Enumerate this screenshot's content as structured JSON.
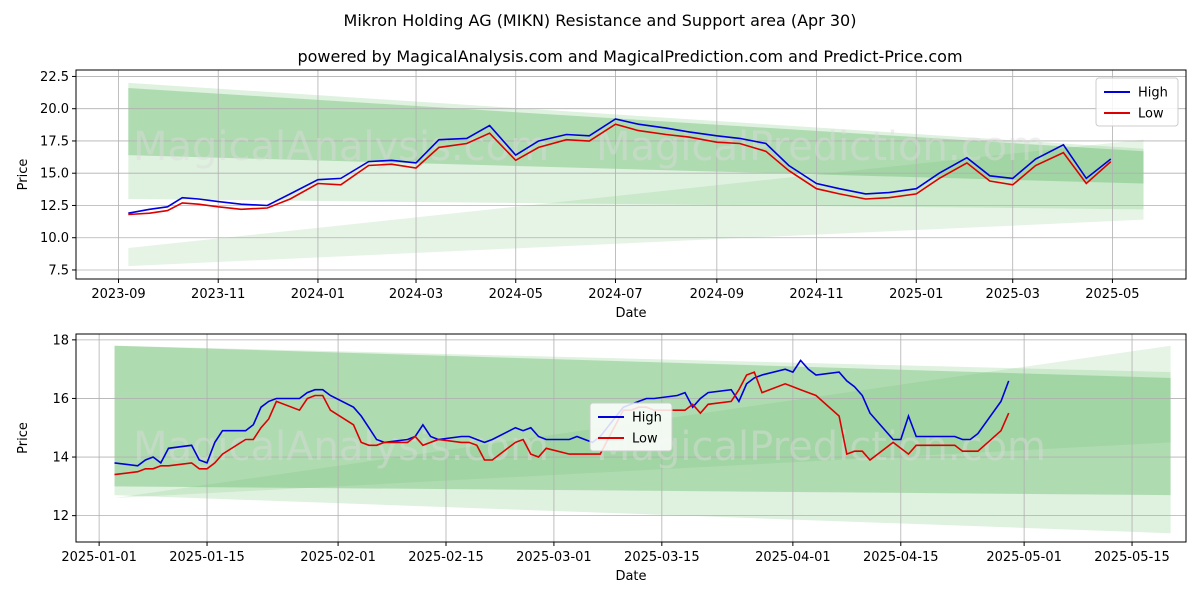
{
  "title": "Mikron Holding AG (MIKN) Resistance and Support area (Apr 30)",
  "subtitle": "powered by MagicalAnalysis.com and MagicalPrediction.com and Predict-Price.com",
  "watermarks": [
    "MagicalAnalysis.com",
    "MagicalPrediction.com"
  ],
  "colors": {
    "high": "#0000dd",
    "low": "#dd0000",
    "band": "#4caf50"
  },
  "chart_data": [
    {
      "type": "line",
      "xlabel": "Date",
      "ylabel": "Price",
      "xlim": [
        "2023-08-06",
        "2025-06-15"
      ],
      "ylim": [
        6.8,
        23.0
      ],
      "xticks": [
        "2023-09",
        "2023-11",
        "2024-01",
        "2024-03",
        "2024-05",
        "2024-07",
        "2024-09",
        "2024-11",
        "2025-01",
        "2025-03",
        "2025-05"
      ],
      "yticks": [
        7.5,
        10.0,
        12.5,
        15.0,
        17.5,
        20.0,
        22.5
      ],
      "legend": "top-right",
      "bands": [
        {
          "x": [
            "2023-09-07",
            "2025-05-20"
          ],
          "upper": [
            22.0,
            16.9
          ],
          "lower": [
            13.0,
            12.2
          ],
          "alpha": 0.18
        },
        {
          "x": [
            "2023-09-07",
            "2025-05-20"
          ],
          "upper": [
            21.6,
            16.7
          ],
          "lower": [
            16.4,
            14.2
          ],
          "alpha": 0.32
        },
        {
          "x": [
            "2023-09-07",
            "2025-05-20"
          ],
          "upper": [
            9.2,
            17.6
          ],
          "lower": [
            7.8,
            11.4
          ],
          "alpha": 0.14
        }
      ],
      "series": [
        {
          "name": "High",
          "x": [
            "2023-09-07",
            "2023-09-20",
            "2023-10-01",
            "2023-10-10",
            "2023-10-20",
            "2023-11-01",
            "2023-11-15",
            "2023-12-01",
            "2023-12-15",
            "2024-01-01",
            "2024-01-15",
            "2024-02-01",
            "2024-02-15",
            "2024-03-01",
            "2024-03-15",
            "2024-04-01",
            "2024-04-15",
            "2024-05-01",
            "2024-05-15",
            "2024-06-01",
            "2024-06-15",
            "2024-07-01",
            "2024-07-15",
            "2024-08-01",
            "2024-08-15",
            "2024-09-01",
            "2024-09-15",
            "2024-10-01",
            "2024-10-15",
            "2024-11-01",
            "2024-11-15",
            "2024-12-01",
            "2024-12-15",
            "2025-01-01",
            "2025-01-15",
            "2025-02-01",
            "2025-02-15",
            "2025-03-01",
            "2025-03-15",
            "2025-04-01",
            "2025-04-15",
            "2025-04-30"
          ],
          "values": [
            11.9,
            12.2,
            12.4,
            13.1,
            13.0,
            12.8,
            12.6,
            12.5,
            13.4,
            14.5,
            14.6,
            15.9,
            16.0,
            15.8,
            17.6,
            17.7,
            18.7,
            16.4,
            17.5,
            18.0,
            17.9,
            19.2,
            18.8,
            18.5,
            18.2,
            17.9,
            17.7,
            17.3,
            15.6,
            14.2,
            13.8,
            13.4,
            13.5,
            13.8,
            15.0,
            16.2,
            14.8,
            14.6,
            16.1,
            17.2,
            14.6,
            16.1
          ]
        },
        {
          "name": "Low",
          "x": [
            "2023-09-07",
            "2023-09-20",
            "2023-10-01",
            "2023-10-10",
            "2023-10-20",
            "2023-11-01",
            "2023-11-15",
            "2023-12-01",
            "2023-12-15",
            "2024-01-01",
            "2024-01-15",
            "2024-02-01",
            "2024-02-15",
            "2024-03-01",
            "2024-03-15",
            "2024-04-01",
            "2024-04-15",
            "2024-05-01",
            "2024-05-15",
            "2024-06-01",
            "2024-06-15",
            "2024-07-01",
            "2024-07-15",
            "2024-08-01",
            "2024-08-15",
            "2024-09-01",
            "2024-09-15",
            "2024-10-01",
            "2024-10-15",
            "2024-11-01",
            "2024-11-15",
            "2024-12-01",
            "2024-12-15",
            "2025-01-01",
            "2025-01-15",
            "2025-02-01",
            "2025-02-15",
            "2025-03-01",
            "2025-03-15",
            "2025-04-01",
            "2025-04-15",
            "2025-04-30"
          ],
          "values": [
            11.8,
            11.9,
            12.1,
            12.7,
            12.6,
            12.4,
            12.2,
            12.3,
            13.0,
            14.2,
            14.1,
            15.6,
            15.7,
            15.4,
            17.0,
            17.3,
            18.1,
            16.0,
            17.0,
            17.6,
            17.5,
            18.8,
            18.3,
            18.0,
            17.8,
            17.4,
            17.3,
            16.7,
            15.2,
            13.8,
            13.4,
            13.0,
            13.1,
            13.4,
            14.6,
            15.8,
            14.4,
            14.1,
            15.6,
            16.6,
            14.2,
            15.9
          ]
        }
      ]
    },
    {
      "type": "line",
      "xlabel": "Date",
      "ylabel": "Price",
      "xlim": [
        "2024-12-29",
        "2025-05-22"
      ],
      "ylim": [
        11.1,
        18.2
      ],
      "xticks": [
        "2025-01-01",
        "2025-01-15",
        "2025-02-01",
        "2025-02-15",
        "2025-03-01",
        "2025-03-15",
        "2025-04-01",
        "2025-04-15",
        "2025-05-01",
        "2025-05-15"
      ],
      "yticks": [
        12,
        14,
        16,
        18
      ],
      "legend": "center",
      "bands": [
        {
          "x": [
            "2025-01-03",
            "2025-05-20"
          ],
          "upper": [
            17.8,
            16.9
          ],
          "lower": [
            12.7,
            11.4
          ],
          "alpha": 0.18
        },
        {
          "x": [
            "2025-01-03",
            "2025-05-20"
          ],
          "upper": [
            17.8,
            16.7
          ],
          "lower": [
            13.0,
            12.7
          ],
          "alpha": 0.32
        },
        {
          "x": [
            "2025-01-03",
            "2025-05-20"
          ],
          "upper": [
            12.6,
            17.8
          ],
          "lower": [
            12.6,
            14.5
          ],
          "alpha": 0.14
        }
      ],
      "series": [
        {
          "name": "High",
          "x": [
            "2025-01-03",
            "2025-01-06",
            "2025-01-07",
            "2025-01-08",
            "2025-01-09",
            "2025-01-10",
            "2025-01-13",
            "2025-01-14",
            "2025-01-15",
            "2025-01-16",
            "2025-01-17",
            "2025-01-20",
            "2025-01-21",
            "2025-01-22",
            "2025-01-23",
            "2025-01-24",
            "2025-01-27",
            "2025-01-28",
            "2025-01-29",
            "2025-01-30",
            "2025-01-31",
            "2025-02-03",
            "2025-02-04",
            "2025-02-05",
            "2025-02-06",
            "2025-02-07",
            "2025-02-10",
            "2025-02-11",
            "2025-02-12",
            "2025-02-13",
            "2025-02-14",
            "2025-02-17",
            "2025-02-18",
            "2025-02-19",
            "2025-02-20",
            "2025-02-21",
            "2025-02-24",
            "2025-02-25",
            "2025-02-26",
            "2025-02-27",
            "2025-02-28",
            "2025-03-03",
            "2025-03-04",
            "2025-03-05",
            "2025-03-06",
            "2025-03-07",
            "2025-03-10",
            "2025-03-11",
            "2025-03-12",
            "2025-03-13",
            "2025-03-14",
            "2025-03-17",
            "2025-03-18",
            "2025-03-19",
            "2025-03-20",
            "2025-03-21",
            "2025-03-24",
            "2025-03-25",
            "2025-03-26",
            "2025-03-27",
            "2025-03-28",
            "2025-03-31",
            "2025-04-01",
            "2025-04-02",
            "2025-04-03",
            "2025-04-04",
            "2025-04-07",
            "2025-04-08",
            "2025-04-09",
            "2025-04-10",
            "2025-04-11",
            "2025-04-14",
            "2025-04-15",
            "2025-04-16",
            "2025-04-17",
            "2025-04-22",
            "2025-04-23",
            "2025-04-24",
            "2025-04-25",
            "2025-04-28",
            "2025-04-29"
          ],
          "values": [
            13.8,
            13.7,
            13.9,
            14.0,
            13.8,
            14.3,
            14.4,
            13.9,
            13.8,
            14.5,
            14.9,
            14.9,
            15.1,
            15.7,
            15.9,
            16.0,
            16.0,
            16.2,
            16.3,
            16.3,
            16.1,
            15.7,
            15.4,
            15.0,
            14.6,
            14.5,
            14.6,
            14.7,
            15.1,
            14.7,
            14.6,
            14.7,
            14.7,
            14.6,
            14.5,
            14.6,
            15.0,
            14.9,
            15.0,
            14.7,
            14.6,
            14.6,
            14.7,
            14.6,
            14.5,
            14.7,
            15.7,
            15.8,
            15.9,
            16.0,
            16.0,
            16.1,
            16.2,
            15.7,
            16.0,
            16.2,
            16.3,
            15.9,
            16.5,
            16.7,
            16.8,
            17.0,
            16.9,
            17.3,
            17.0,
            16.8,
            16.9,
            16.6,
            16.4,
            16.1,
            15.5,
            14.6,
            14.6,
            15.4,
            14.7,
            14.7,
            14.6,
            14.6,
            14.8,
            15.9,
            16.6
          ]
        },
        {
          "name": "Low",
          "x": [
            "2025-01-03",
            "2025-01-06",
            "2025-01-07",
            "2025-01-08",
            "2025-01-09",
            "2025-01-10",
            "2025-01-13",
            "2025-01-14",
            "2025-01-15",
            "2025-01-16",
            "2025-01-17",
            "2025-01-20",
            "2025-01-21",
            "2025-01-22",
            "2025-01-23",
            "2025-01-24",
            "2025-01-27",
            "2025-01-28",
            "2025-01-29",
            "2025-01-30",
            "2025-01-31",
            "2025-02-03",
            "2025-02-04",
            "2025-02-05",
            "2025-02-06",
            "2025-02-07",
            "2025-02-10",
            "2025-02-11",
            "2025-02-12",
            "2025-02-13",
            "2025-02-14",
            "2025-02-17",
            "2025-02-18",
            "2025-02-19",
            "2025-02-20",
            "2025-02-21",
            "2025-02-24",
            "2025-02-25",
            "2025-02-26",
            "2025-02-27",
            "2025-02-28",
            "2025-03-03",
            "2025-03-04",
            "2025-03-05",
            "2025-03-06",
            "2025-03-07",
            "2025-03-10",
            "2025-03-11",
            "2025-03-12",
            "2025-03-13",
            "2025-03-14",
            "2025-03-17",
            "2025-03-18",
            "2025-03-19",
            "2025-03-20",
            "2025-03-21",
            "2025-03-24",
            "2025-03-25",
            "2025-03-26",
            "2025-03-27",
            "2025-03-28",
            "2025-03-31",
            "2025-04-01",
            "2025-04-02",
            "2025-04-03",
            "2025-04-04",
            "2025-04-07",
            "2025-04-08",
            "2025-04-09",
            "2025-04-10",
            "2025-04-11",
            "2025-04-14",
            "2025-04-15",
            "2025-04-16",
            "2025-04-17",
            "2025-04-22",
            "2025-04-23",
            "2025-04-24",
            "2025-04-25",
            "2025-04-28",
            "2025-04-29"
          ],
          "values": [
            13.4,
            13.5,
            13.6,
            13.6,
            13.7,
            13.7,
            13.8,
            13.6,
            13.6,
            13.8,
            14.1,
            14.6,
            14.6,
            15.0,
            15.3,
            15.9,
            15.6,
            16.0,
            16.1,
            16.1,
            15.6,
            15.1,
            14.5,
            14.4,
            14.4,
            14.5,
            14.5,
            14.7,
            14.4,
            14.5,
            14.6,
            14.5,
            14.5,
            14.4,
            13.9,
            13.9,
            14.5,
            14.6,
            14.1,
            14.0,
            14.3,
            14.1,
            14.1,
            14.1,
            14.1,
            14.1,
            15.6,
            15.6,
            15.7,
            15.7,
            15.6,
            15.6,
            15.6,
            15.8,
            15.5,
            15.8,
            15.9,
            16.3,
            16.8,
            16.9,
            16.2,
            16.5,
            16.4,
            16.3,
            16.2,
            16.1,
            15.4,
            14.1,
            14.2,
            14.2,
            13.9,
            14.5,
            14.3,
            14.1,
            14.4,
            14.4,
            14.2,
            14.2,
            14.2,
            14.9,
            15.5
          ]
        }
      ]
    }
  ]
}
